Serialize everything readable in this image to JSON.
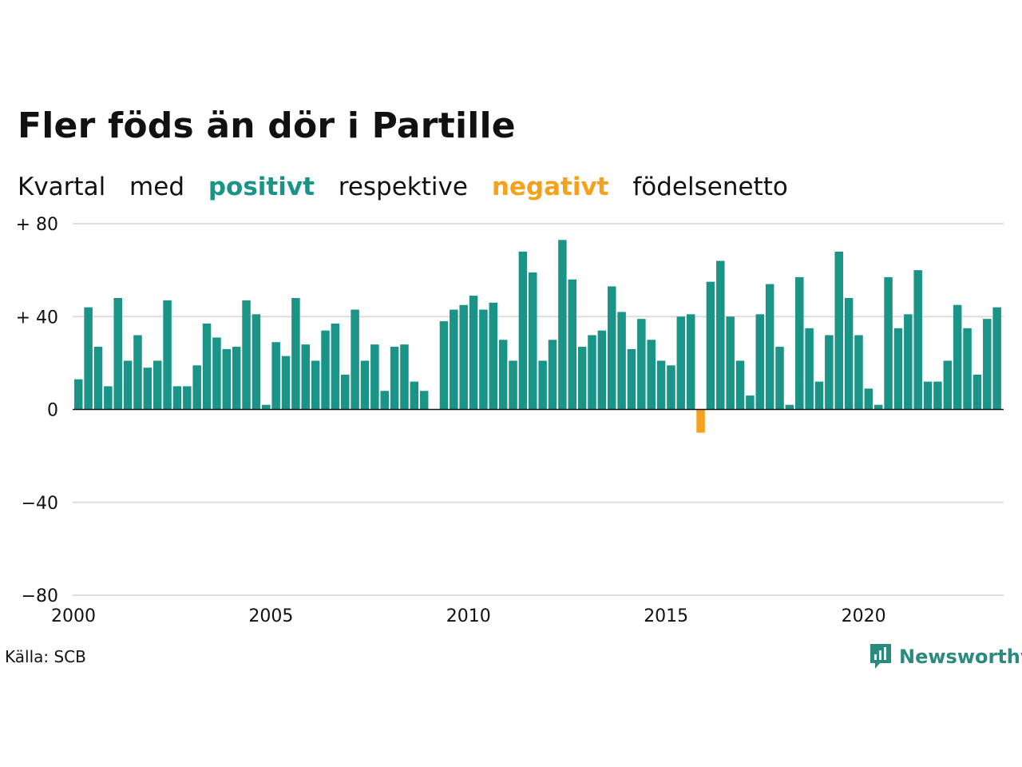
{
  "title": "Fler föds än dör i Partille",
  "subtitle": {
    "parts": [
      "Kvartal",
      "med",
      "positivt",
      "respektive",
      "negativt",
      "födelsenetto"
    ]
  },
  "source": "Källa: SCB",
  "logo": {
    "text": "Newsworthy",
    "icon": "newsworthy-chat-bars-icon",
    "color": "#2a8a7d"
  },
  "colors": {
    "positive": "#1a9486",
    "negative": "#f5a11c",
    "grid": "#dddddd",
    "zero": "#111111"
  },
  "chart_data": {
    "type": "bar",
    "title": "Fler föds än dör i Partille",
    "subtitle": "Kvartal med positivt respektive negativt födelsenetto",
    "ylim": [
      -80,
      80
    ],
    "yticks": [
      {
        "value": 80,
        "label": "+ 80"
      },
      {
        "value": 40,
        "label": "+ 40"
      },
      {
        "value": 0,
        "label": "0"
      },
      {
        "value": -40,
        "label": "−40"
      },
      {
        "value": -80,
        "label": "−80"
      }
    ],
    "xticks": [
      "2000",
      "2005",
      "2010",
      "2015",
      "2020"
    ],
    "grid": true,
    "start": "2000 Q1",
    "frequency": "quarterly",
    "values": [
      13,
      44,
      27,
      10,
      48,
      21,
      32,
      18,
      21,
      47,
      10,
      10,
      19,
      37,
      31,
      26,
      27,
      47,
      41,
      2,
      29,
      23,
      48,
      28,
      21,
      34,
      37,
      15,
      43,
      21,
      28,
      8,
      27,
      28,
      12,
      8,
      0,
      38,
      43,
      45,
      49,
      43,
      46,
      30,
      21,
      68,
      59,
      21,
      30,
      73,
      56,
      27,
      32,
      34,
      53,
      42,
      26,
      39,
      30,
      21,
      19,
      40,
      41,
      -10,
      55,
      64,
      40,
      21,
      6,
      41,
      54,
      27,
      2,
      57,
      35,
      12,
      32,
      68,
      48,
      32,
      9,
      2,
      57,
      35,
      41,
      60,
      12,
      12,
      21,
      45,
      35,
      15,
      39,
      44
    ]
  }
}
